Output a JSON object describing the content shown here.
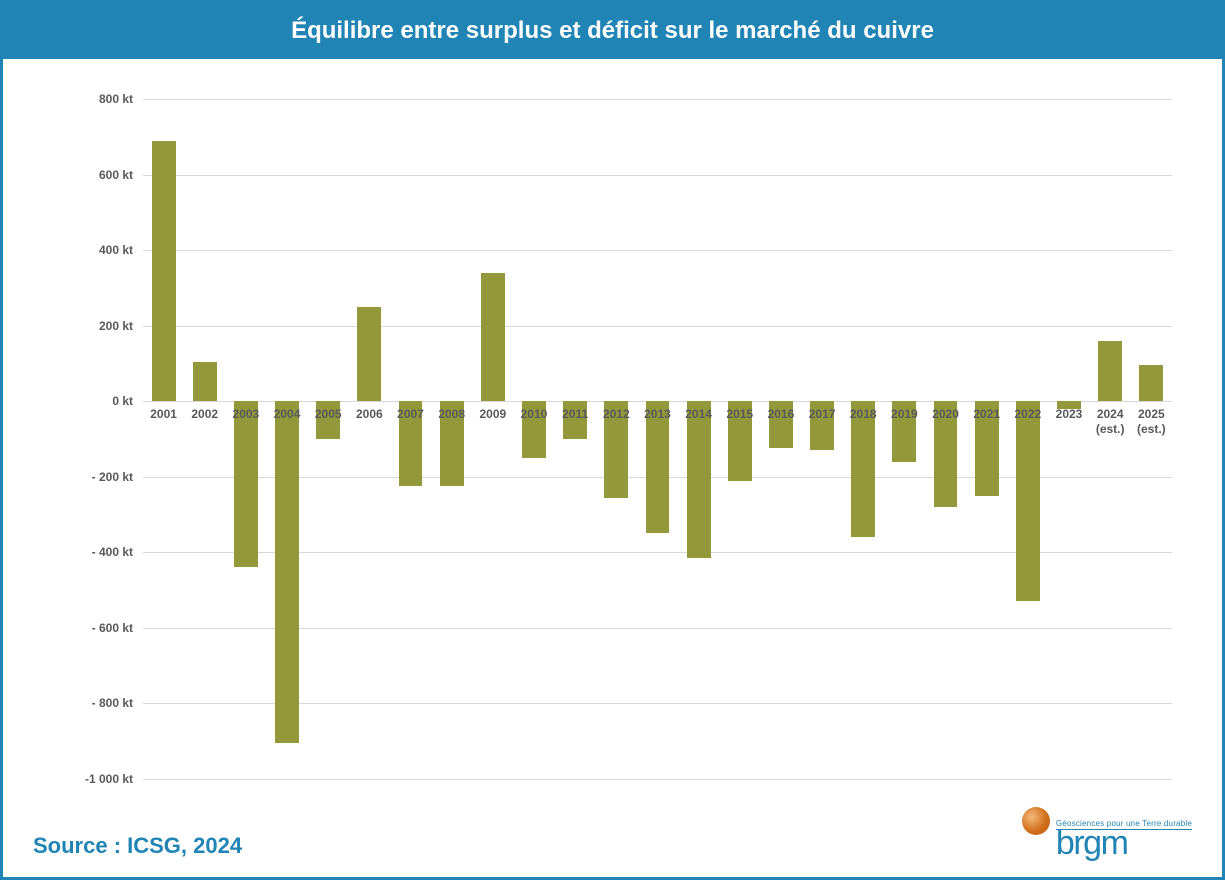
{
  "header": {
    "title": "Équilibre entre surplus et déficit sur le marché du cuivre"
  },
  "chart": {
    "type": "bar",
    "bar_color": "#93993a",
    "grid_color": "#d9d9d9",
    "background_color": "#ffffff",
    "axis_label_color": "#595959",
    "axis_label_fontsize": 12,
    "axis_label_fontweight": "bold",
    "bar_width_ratio": 0.58,
    "ylim": [
      -1000,
      800
    ],
    "ytick_step": 200,
    "y_unit": "kt",
    "y_ticks": [
      {
        "v": 800,
        "label": "800 kt"
      },
      {
        "v": 600,
        "label": "600 kt"
      },
      {
        "v": 400,
        "label": "400 kt"
      },
      {
        "v": 200,
        "label": "200 kt"
      },
      {
        "v": 0,
        "label": "0 kt"
      },
      {
        "v": -200,
        "label": "- 200 kt"
      },
      {
        "v": -400,
        "label": "- 400 kt"
      },
      {
        "v": -600,
        "label": "- 600 kt"
      },
      {
        "v": -800,
        "label": "- 800 kt"
      },
      {
        "v": -1000,
        "label": "-1 000 kt"
      }
    ],
    "categories": [
      "2001",
      "2002",
      "2003",
      "2004",
      "2005",
      "2006",
      "2007",
      "2008",
      "2009",
      "2010",
      "2011",
      "2012",
      "2013",
      "2014",
      "2015",
      "2016",
      "2017",
      "2018",
      "2019",
      "2020",
      "2021",
      "2022",
      "2023",
      "2024\n(est.)",
      "2025\n(est.)"
    ],
    "values": [
      690,
      105,
      -440,
      -905,
      -100,
      250,
      -225,
      -225,
      340,
      -150,
      -100,
      -255,
      -350,
      -415,
      -210,
      -125,
      -130,
      -360,
      -160,
      -280,
      -250,
      -530,
      -20,
      160,
      95
    ]
  },
  "footer": {
    "source": "Source : ICSG, 2024",
    "logo": {
      "tagline": "Géosciences pour une Terre durable",
      "name": "brgm"
    }
  }
}
